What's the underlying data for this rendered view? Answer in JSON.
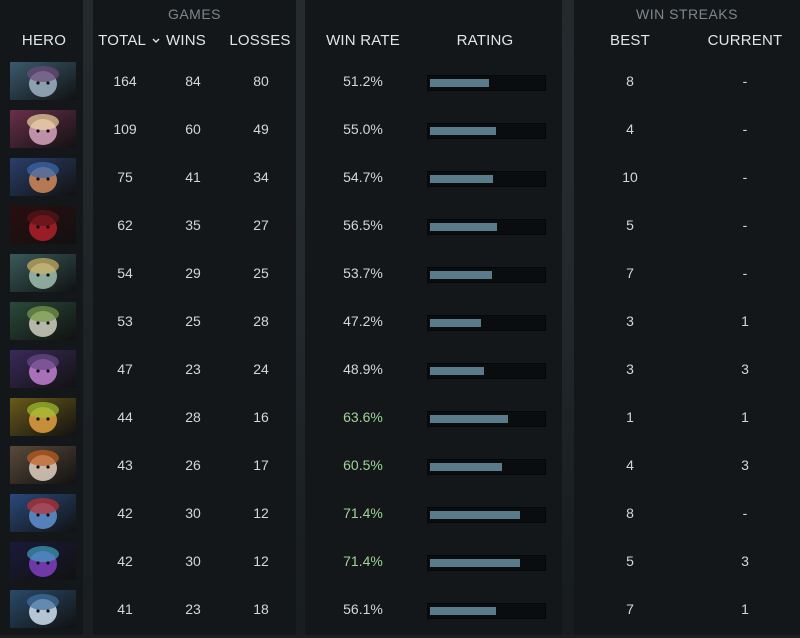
{
  "headers": {
    "games_group": "GAMES",
    "win_streaks_group": "WIN STREAKS",
    "hero": "HERO",
    "total": "TOTAL",
    "total_sort_icon": "chevron-down-icon",
    "wins": "WINS",
    "losses": "LOSSES",
    "win_rate": "WIN RATE",
    "rating": "RATING",
    "best": "BEST",
    "current": "CURRENT"
  },
  "colors": {
    "win_rate_high": "#9fd39b",
    "win_rate_normal": "#d3d7da",
    "rating_bar": "#5a7b89"
  },
  "rows": [
    {
      "hero_icon": "hero-portrait-1",
      "total": "164",
      "wins": "84",
      "losses": "80",
      "win_rate": "51.2%",
      "rating": 0.52,
      "best": "8",
      "current": "-",
      "highlight": false
    },
    {
      "hero_icon": "hero-portrait-2",
      "total": "109",
      "wins": "60",
      "losses": "49",
      "win_rate": "55.0%",
      "rating": 0.58,
      "best": "4",
      "current": "-",
      "highlight": false
    },
    {
      "hero_icon": "hero-portrait-3",
      "total": "75",
      "wins": "41",
      "losses": "34",
      "win_rate": "54.7%",
      "rating": 0.56,
      "best": "10",
      "current": "-",
      "highlight": false
    },
    {
      "hero_icon": "hero-portrait-4",
      "total": "62",
      "wins": "35",
      "losses": "27",
      "win_rate": "56.5%",
      "rating": 0.59,
      "best": "5",
      "current": "-",
      "highlight": false
    },
    {
      "hero_icon": "hero-portrait-5",
      "total": "54",
      "wins": "29",
      "losses": "25",
      "win_rate": "53.7%",
      "rating": 0.55,
      "best": "7",
      "current": "-",
      "highlight": false
    },
    {
      "hero_icon": "hero-portrait-6",
      "total": "53",
      "wins": "25",
      "losses": "28",
      "win_rate": "47.2%",
      "rating": 0.45,
      "best": "3",
      "current": "1",
      "highlight": false
    },
    {
      "hero_icon": "hero-portrait-7",
      "total": "47",
      "wins": "23",
      "losses": "24",
      "win_rate": "48.9%",
      "rating": 0.48,
      "best": "3",
      "current": "3",
      "highlight": false
    },
    {
      "hero_icon": "hero-portrait-8",
      "total": "44",
      "wins": "28",
      "losses": "16",
      "win_rate": "63.6%",
      "rating": 0.69,
      "best": "1",
      "current": "1",
      "highlight": true
    },
    {
      "hero_icon": "hero-portrait-9",
      "total": "43",
      "wins": "26",
      "losses": "17",
      "win_rate": "60.5%",
      "rating": 0.64,
      "best": "4",
      "current": "3",
      "highlight": true
    },
    {
      "hero_icon": "hero-portrait-10",
      "total": "42",
      "wins": "30",
      "losses": "12",
      "win_rate": "71.4%",
      "rating": 0.8,
      "best": "8",
      "current": "-",
      "highlight": true
    },
    {
      "hero_icon": "hero-portrait-11",
      "total": "42",
      "wins": "30",
      "losses": "12",
      "win_rate": "71.4%",
      "rating": 0.8,
      "best": "5",
      "current": "3",
      "highlight": true
    },
    {
      "hero_icon": "hero-portrait-12",
      "total": "41",
      "wins": "23",
      "losses": "18",
      "win_rate": "56.1%",
      "rating": 0.58,
      "best": "7",
      "current": "1",
      "highlight": false
    }
  ]
}
